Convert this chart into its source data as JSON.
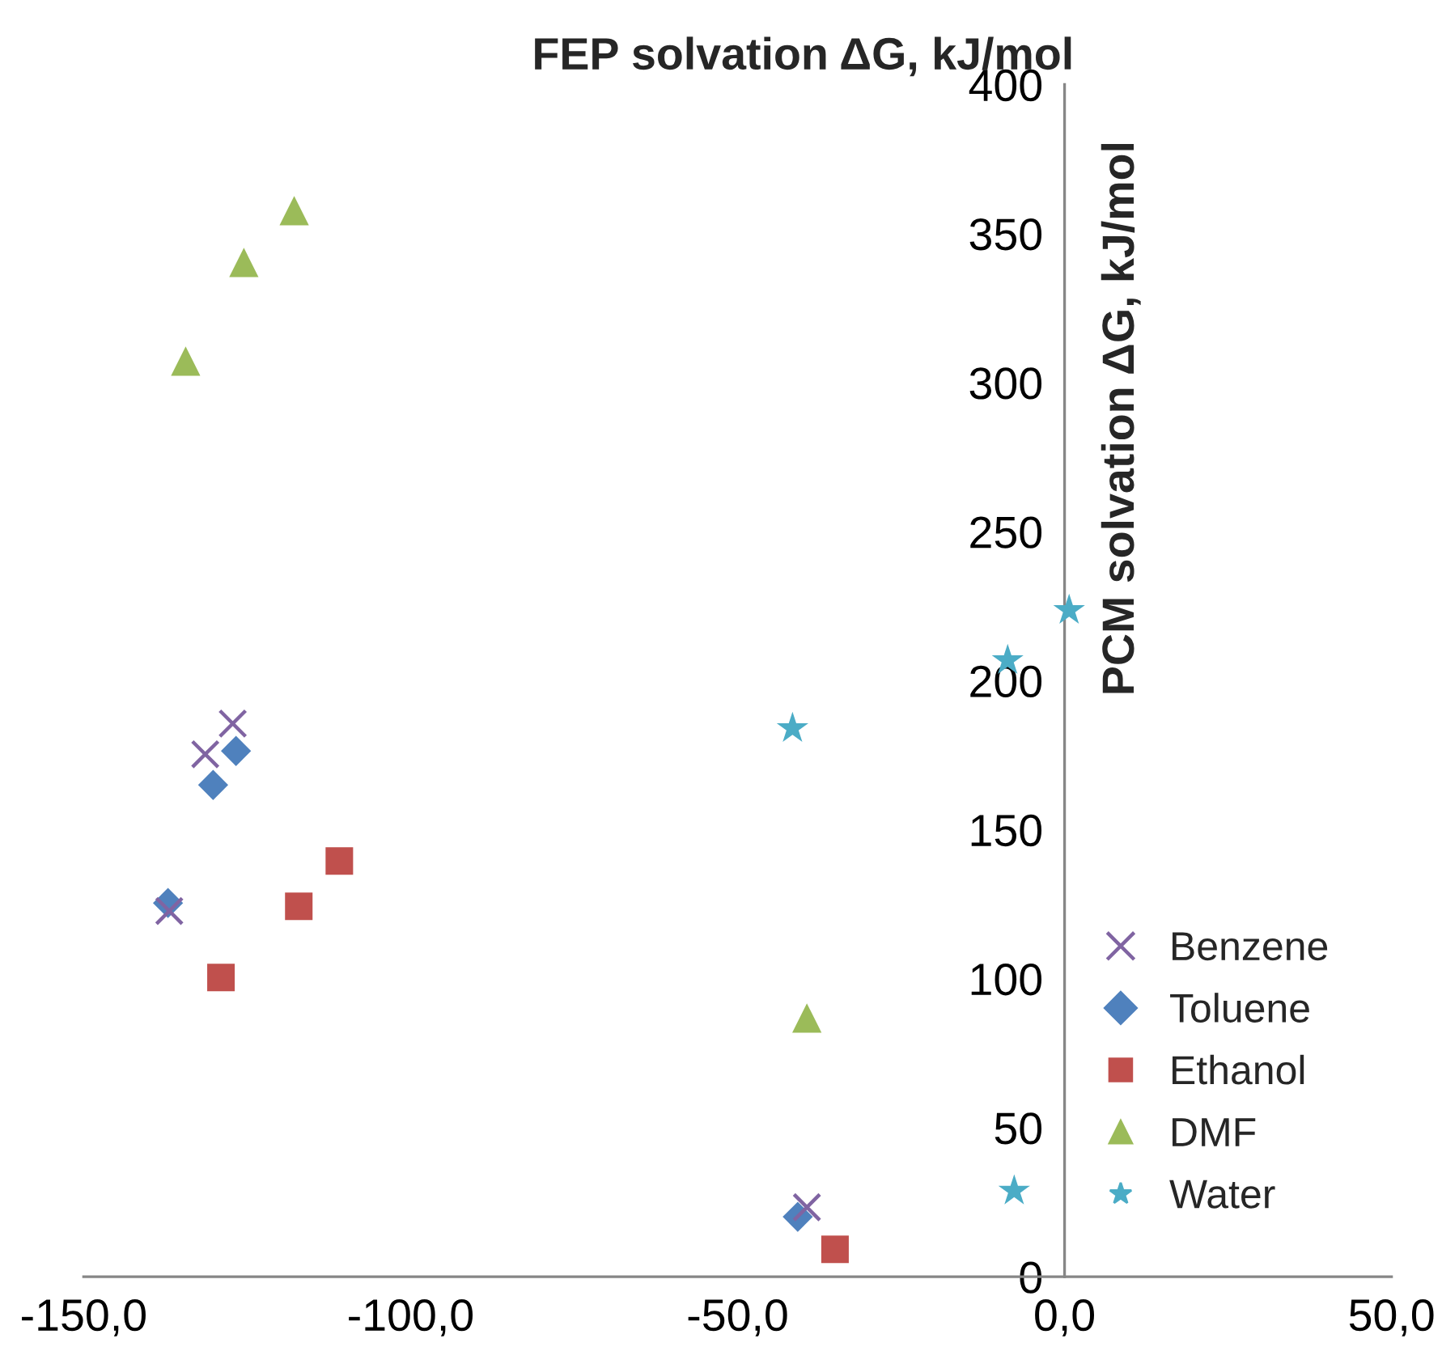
{
  "chart_data": {
    "type": "scatter",
    "xlabel": "FEP solvation ΔG, kJ/mol",
    "ylabel": "PCM solvation ΔG, kJ/mol",
    "xlim": [
      -150,
      50
    ],
    "xticks": [
      {
        "value": -150,
        "label": "-150,0"
      },
      {
        "value": -100,
        "label": "-100,0"
      },
      {
        "value": -50,
        "label": "-50,0"
      },
      {
        "value": 0,
        "label": "0,0"
      },
      {
        "value": 50,
        "label": "50,0"
      }
    ],
    "ylim": [
      0,
      400
    ],
    "yticks": [
      0,
      50,
      100,
      150,
      200,
      250,
      300,
      350,
      400
    ],
    "grid": false,
    "legend": "bottom right",
    "series": [
      {
        "name": "Benzene",
        "color": "#8064a2",
        "marker": "cross",
        "x": [
          -127.2,
          -131.4,
          -136.9,
          -39.4
        ],
        "values": [
          185.6,
          175.3,
          122.7,
          23.3
        ]
      },
      {
        "name": "Toluene",
        "color": "#4f81bd",
        "marker": "diamond",
        "x": [
          -126.7,
          -130.2,
          -137.1,
          -40.8
        ],
        "values": [
          176.4,
          165,
          125.4,
          20.1
        ]
      },
      {
        "name": "Ethanol",
        "color": "#c0504d",
        "marker": "square",
        "x": [
          -110.9,
          -117.1,
          -129,
          -35.1
        ],
        "values": [
          139.5,
          124.3,
          100.4,
          9.2
        ]
      },
      {
        "name": "DMF",
        "color": "#9bbb59",
        "marker": "triangle",
        "x": [
          -117.8,
          -125.5,
          -134.4,
          -39.4
        ],
        "values": [
          357.7,
          340.3,
          307.2,
          86.8
        ]
      },
      {
        "name": "Water",
        "color": "#4bacc6",
        "marker": "star",
        "x": [
          0.7,
          -8.7,
          -41.6,
          -7.7
        ],
        "values": [
          223.6,
          206.8,
          184,
          28.8
        ]
      }
    ]
  }
}
